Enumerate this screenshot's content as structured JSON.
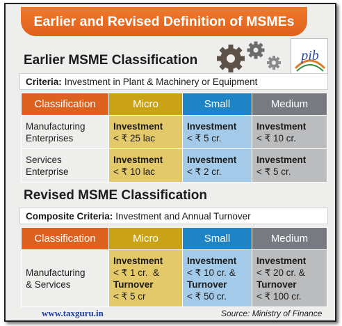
{
  "banner": {
    "title": "Earlier and Revised Definition of MSMEs"
  },
  "logo": {
    "text": "pib"
  },
  "earlier": {
    "title": "Earlier MSME Classification",
    "criteria_label": "Criteria:",
    "criteria_text": "Investment in Plant & Machinery or Equipment",
    "headers": [
      "Classification",
      "Micro",
      "Small",
      "Medium"
    ],
    "rows": [
      {
        "classification": [
          "Manufacturing",
          "Enterprises"
        ],
        "micro": [
          "Investment",
          "< ₹ 25 lac"
        ],
        "small": [
          "Investment",
          "< ₹ 5 cr."
        ],
        "medium": [
          "Investment",
          "< ₹ 10 cr."
        ]
      },
      {
        "classification": [
          "Services",
          "Enterprise"
        ],
        "micro": [
          "Investment",
          "< ₹ 10 lac"
        ],
        "small": [
          "Investment",
          "< ₹ 2 cr."
        ],
        "medium": [
          "Investment",
          "< ₹ 5 cr."
        ]
      }
    ]
  },
  "revised": {
    "title": "Revised MSME Classification",
    "criteria_label": "Composite Criteria:",
    "criteria_text": "Investment and Annual Turnover",
    "headers": [
      "Classification",
      "Micro",
      "Small",
      "Medium"
    ],
    "row": {
      "classification": [
        "Manufacturing",
        "& Services"
      ],
      "micro": [
        "Investment",
        "< ₹ 1 cr.  &",
        "Turnover",
        "< ₹ 5 cr"
      ],
      "small": [
        "Investment",
        "< ₹ 10 cr. &",
        "Turnover",
        "< ₹ 50 cr."
      ],
      "medium": [
        "Investment",
        "< ₹ 20 cr. &",
        "Turnover",
        "< ₹ 100 cr."
      ]
    }
  },
  "footer": {
    "site": "www.taxguru.in",
    "source": "Source: Ministry of Finance"
  },
  "colors": {
    "orange": "#dd6220",
    "micro": "#c9a315",
    "small": "#1e84c6",
    "medium": "#777a80"
  },
  "icons": [
    "gears-icon",
    "pib-logo-icon"
  ]
}
